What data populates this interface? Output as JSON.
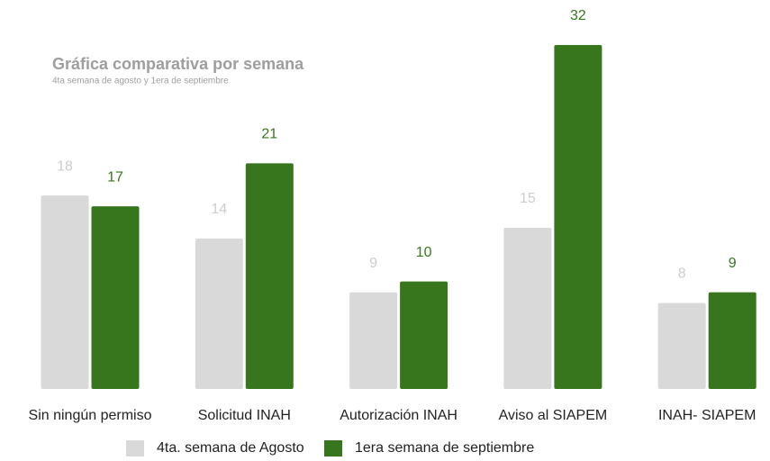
{
  "chart_data": {
    "type": "bar",
    "title": "Gráfica comparativa por semana",
    "subtitle": "4ta semana de agosto y 1era de septiembre",
    "categories": [
      "Sin ningún permiso",
      "Solicitud INAH",
      "Autorización INAH",
      "Aviso al SIAPEM",
      "INAH- SIAPEM"
    ],
    "series": [
      {
        "name": "4ta. semana de Agosto",
        "color": "#d9d9d9",
        "values": [
          18,
          14,
          9,
          15,
          8
        ]
      },
      {
        "name": "1era semana de septiembre",
        "color": "#38761d",
        "values": [
          17,
          21,
          10,
          32,
          9
        ]
      }
    ]
  }
}
